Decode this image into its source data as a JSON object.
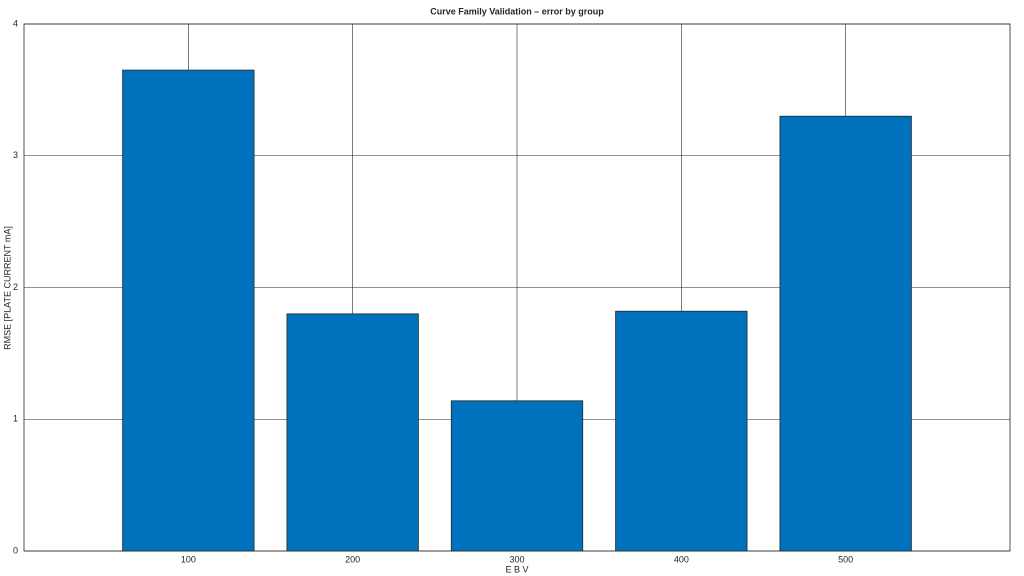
{
  "chart_data": {
    "type": "bar",
    "title": "Curve Family Validation – error by group",
    "x_label": "E B V",
    "y_label": "RMSE [PLATE CURRENT mA]",
    "x": [
      100,
      200,
      300,
      400,
      500
    ],
    "values": [
      3.65,
      1.8,
      1.14,
      1.82,
      3.3
    ],
    "color": "#0072bd",
    "xlim": [
      0,
      600
    ],
    "xticks": [
      100,
      200,
      300,
      400,
      500
    ],
    "ylim": [
      0,
      4
    ],
    "yticks": [
      0,
      1,
      2,
      3,
      4
    ],
    "grid": true
  }
}
